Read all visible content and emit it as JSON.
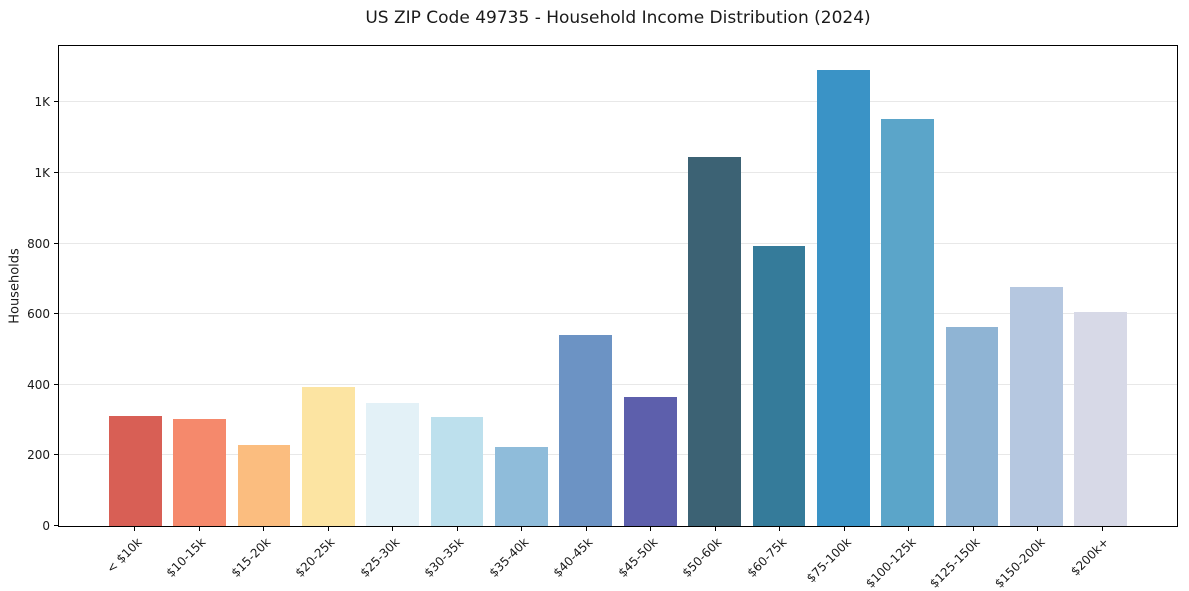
{
  "chart_data": {
    "type": "bar",
    "title": "US ZIP Code 49735 - Household Income Distribution (2024)",
    "xlabel": "",
    "ylabel": "Households",
    "categories": [
      "< $10k",
      "$10-15k",
      "$15-20k",
      "$20-25k",
      "$25-30k",
      "$30-35k",
      "$35-40k",
      "$40-45k",
      "$45-50k",
      "$50-60k",
      "$60-75k",
      "$75-100k",
      "$100-125k",
      "$125-150k",
      "$150-200k",
      "$200k+"
    ],
    "values": [
      311,
      304,
      230,
      394,
      348,
      309,
      224,
      540,
      366,
      1046,
      794,
      1291,
      1154,
      565,
      677,
      607
    ],
    "bar_colors": [
      "#d85f55",
      "#f5896c",
      "#fbbd7f",
      "#fce4a2",
      "#e3f1f7",
      "#bde0ed",
      "#8fbcda",
      "#6c93c4",
      "#5d5fac",
      "#3c6274",
      "#357b9a",
      "#3a93c6",
      "#5ba5c9",
      "#8fb4d4",
      "#b5c7e0",
      "#d7d9e7"
    ],
    "ylim": [
      0,
      1360
    ],
    "yticks": [
      {
        "value": 0,
        "label": "0"
      },
      {
        "value": 200,
        "label": "200"
      },
      {
        "value": 400,
        "label": "400"
      },
      {
        "value": 600,
        "label": "600"
      },
      {
        "value": 800,
        "label": "800"
      },
      {
        "value": 1000,
        "label": "1K"
      },
      {
        "value": 1200,
        "label": "1K"
      }
    ],
    "grid": "horizontal",
    "legend": "none",
    "xtick_rotation_deg": 45
  },
  "style_colors": {
    "background": "#ffffff",
    "grid": "#e8e8e8",
    "spine": "#000000",
    "text": "#1a1a1a"
  }
}
